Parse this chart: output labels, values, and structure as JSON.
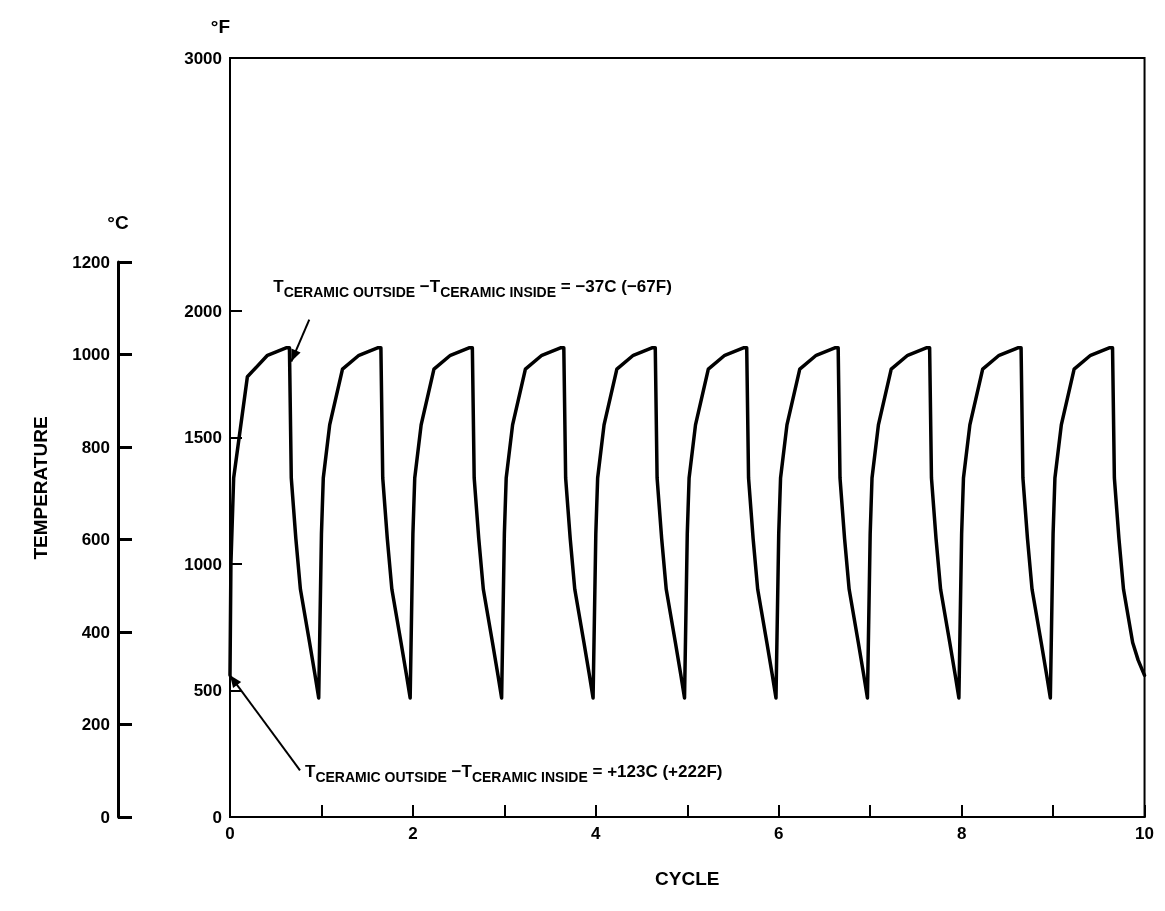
{
  "chart_data": {
    "type": "line",
    "xlabel": "CYCLE",
    "ylabel": "°F",
    "y2label": "°C",
    "x": [
      0,
      0.01,
      0.04,
      0.1,
      0.19,
      0.41,
      0.62,
      0.65,
      0.67,
      0.72,
      0.77,
      0.87,
      0.93,
      0.97,
      1,
      1.02,
      1.09,
      1.23,
      1.41,
      1.62,
      1.65,
      1.67,
      1.72,
      1.77,
      1.87,
      1.93,
      1.97,
      2,
      2.02,
      2.09,
      2.23,
      2.41,
      2.62,
      2.65,
      2.67,
      2.72,
      2.77,
      2.87,
      2.93,
      2.97,
      3,
      3.02,
      3.09,
      3.23,
      3.41,
      3.62,
      3.65,
      3.67,
      3.72,
      3.77,
      3.87,
      3.93,
      3.97,
      4,
      4.02,
      4.09,
      4.23,
      4.41,
      4.62,
      4.65,
      4.67,
      4.72,
      4.77,
      4.87,
      4.93,
      4.97,
      5,
      5.02,
      5.09,
      5.23,
      5.41,
      5.62,
      5.65,
      5.67,
      5.72,
      5.77,
      5.87,
      5.93,
      5.97,
      6,
      6.02,
      6.09,
      6.23,
      6.41,
      6.62,
      6.65,
      6.67,
      6.72,
      6.77,
      6.87,
      6.93,
      6.97,
      7,
      7.02,
      7.09,
      7.23,
      7.41,
      7.62,
      7.65,
      7.67,
      7.72,
      7.77,
      7.87,
      7.93,
      7.97,
      8,
      8.02,
      8.09,
      8.23,
      8.41,
      8.62,
      8.65,
      8.67,
      8.72,
      8.77,
      8.87,
      8.93,
      8.97,
      9,
      9.02,
      9.09,
      9.23,
      9.41,
      9.62,
      9.65,
      9.67,
      9.72,
      9.77,
      9.87,
      9.93,
      10
    ],
    "series": [
      {
        "color": "#000000",
        "values": [
          560,
          1000,
          1340,
          1500,
          1740,
          1825,
          1855,
          1855,
          1340,
          1100,
          900,
          690,
          560,
          470,
          1120,
          1340,
          1550,
          1770,
          1825,
          1855,
          1855,
          1340,
          1100,
          900,
          690,
          560,
          470,
          1120,
          1340,
          1550,
          1770,
          1825,
          1855,
          1855,
          1340,
          1100,
          900,
          690,
          560,
          470,
          1120,
          1340,
          1550,
          1770,
          1825,
          1855,
          1855,
          1340,
          1100,
          900,
          690,
          560,
          470,
          1120,
          1340,
          1550,
          1770,
          1825,
          1855,
          1855,
          1340,
          1100,
          900,
          690,
          560,
          470,
          1120,
          1340,
          1550,
          1770,
          1825,
          1855,
          1855,
          1340,
          1100,
          900,
          690,
          560,
          470,
          1120,
          1340,
          1550,
          1770,
          1825,
          1855,
          1855,
          1340,
          1100,
          900,
          690,
          560,
          470,
          1120,
          1340,
          1550,
          1770,
          1825,
          1855,
          1855,
          1340,
          1100,
          900,
          690,
          560,
          470,
          1120,
          1340,
          1550,
          1770,
          1825,
          1855,
          1855,
          1340,
          1100,
          900,
          690,
          560,
          470,
          1120,
          1340,
          1550,
          1770,
          1825,
          1855,
          1855,
          1340,
          1100,
          900,
          690,
          620,
          560
        ]
      }
    ],
    "xlim": [
      0,
      10
    ],
    "xticks": [
      0,
      {
        "value": 1,
        "label": null
      },
      2,
      {
        "value": 3,
        "label": null
      },
      4,
      {
        "value": 5,
        "label": null
      },
      6,
      {
        "value": 7,
        "label": null
      },
      8,
      {
        "value": 9,
        "label": null
      },
      10
    ],
    "ylim": [
      0,
      3000
    ],
    "yticks": [
      0,
      500,
      1000,
      1500,
      2000,
      3000
    ],
    "y2lim": [
      0,
      1200
    ],
    "y2ticks": [
      0,
      200,
      400,
      600,
      800,
      1000,
      1200
    ],
    "grid": false,
    "marker": "none",
    "line_style": "solid",
    "annotations": [
      "TEMPERATURE",
      {
        "text": "T$_{CERAMIC OUTSIDE}$ −T$_{CERAMIC INSIDE}$ = −37C (−67F)",
        "x": 0.67,
        "y": 1800
      },
      {
        "text": "T$_{CERAMIC OUTSIDE}$ −T$_{CERAMIC INSIDE}$ = +123C (+222F)",
        "x": 0,
        "y": 560
      }
    ]
  }
}
